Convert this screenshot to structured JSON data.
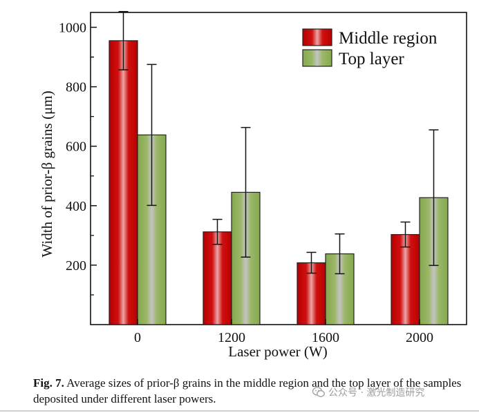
{
  "chart_data": {
    "type": "bar",
    "title": "",
    "xlabel": "Laser power (W)",
    "ylabel": "Width of prior-β grains (μm)",
    "categories": [
      "0",
      "1200",
      "1600",
      "2000"
    ],
    "ylim": [
      0,
      1050
    ],
    "yticks": [
      200,
      400,
      600,
      800,
      1000
    ],
    "series": [
      {
        "name": "Middle region",
        "color": "#c00000",
        "values": [
          955,
          312,
          208,
          303
        ],
        "errors": [
          98,
          42,
          35,
          42
        ]
      },
      {
        "name": "Top layer",
        "color": "#92b25e",
        "values": [
          638,
          445,
          238,
          427
        ],
        "errors": [
          237,
          218,
          67,
          228
        ]
      }
    ],
    "legend_position": "top-right"
  },
  "caption": {
    "label": "Fig. 7.",
    "text": " Average sizes of prior-β grains in the middle region and the top layer of the samples deposited under different laser powers."
  },
  "watermark": {
    "icon": "wechat-icon",
    "text": "公众号 · 激光制造研究"
  }
}
